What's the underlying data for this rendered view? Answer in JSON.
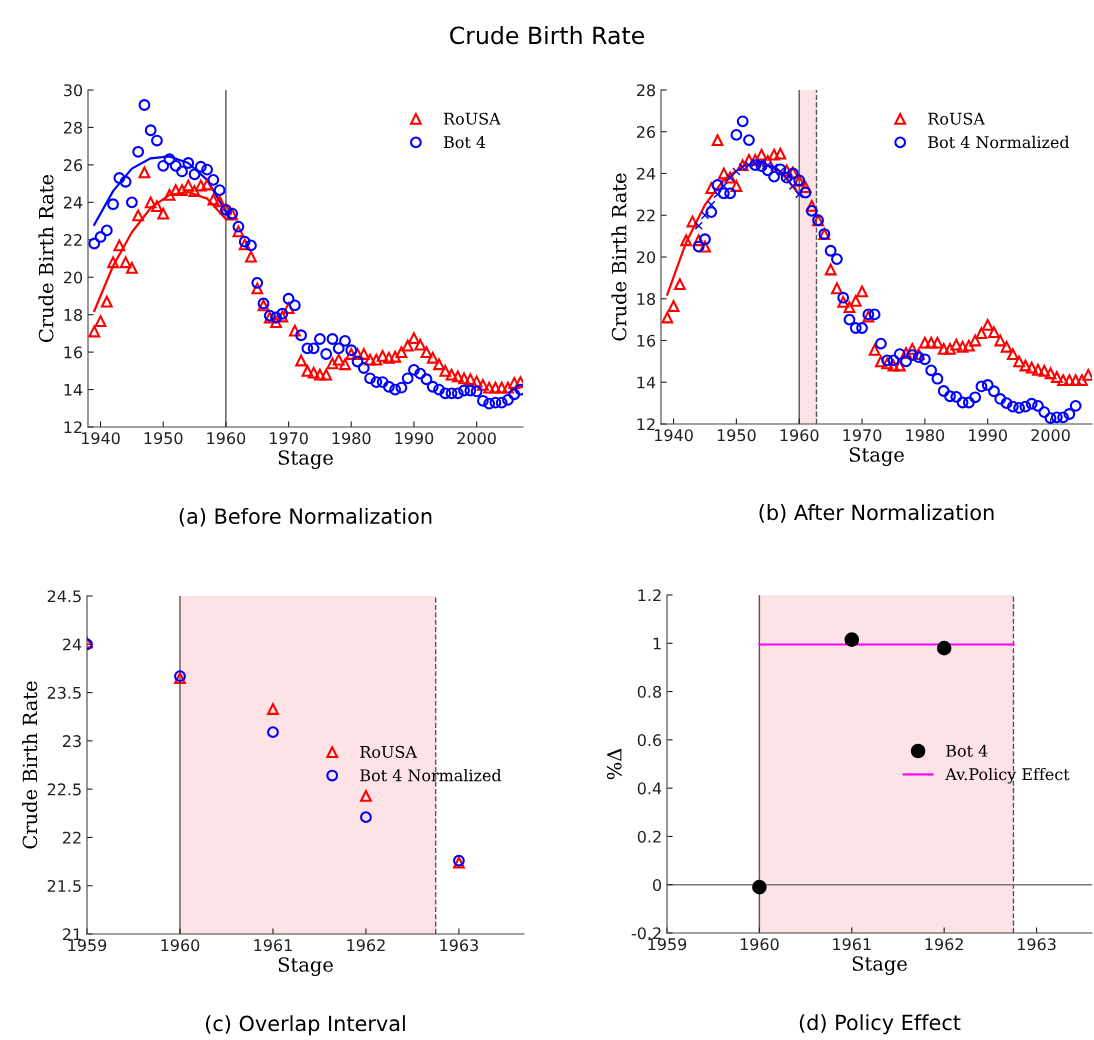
{
  "chart_data": [
    {
      "type": "scatter",
      "title": "Crude Birth Rate",
      "xlabel": "Stage",
      "ylabel": "Crude Birth Rate",
      "annotations": [
        "(a) Before Normalization"
      ],
      "xlim": [
        1938,
        2007.4
      ],
      "xticks": [
        1940,
        1950,
        1960,
        1970,
        1980,
        1990,
        2000
      ],
      "ylim": [
        12,
        30
      ],
      "yticks": [
        12,
        14,
        16,
        18,
        20,
        22,
        24,
        26,
        28,
        30
      ],
      "legend": "top right",
      "grid": false,
      "ref_lines": [
        {
          "axis": "x",
          "value": 1960,
          "color": "#555555",
          "line_style": "solid"
        }
      ],
      "series": [
        {
          "name": "RoUSA",
          "type": "scatter",
          "marker": "triangle",
          "color": "#ff0000",
          "x": [
            1939,
            1940,
            1941,
            1942,
            1943,
            1944,
            1945,
            1946,
            1947,
            1948,
            1949,
            1950,
            1951,
            1952,
            1953,
            1954,
            1955,
            1956,
            1957,
            1958,
            1959,
            1960,
            1961,
            1962,
            1963,
            1964,
            1965,
            1966,
            1967,
            1968,
            1969,
            1970,
            1971,
            1972,
            1973,
            1974,
            1975,
            1976,
            1977,
            1978,
            1979,
            1980,
            1981,
            1982,
            1983,
            1984,
            1985,
            1986,
            1987,
            1988,
            1989,
            1990,
            1991,
            1992,
            1993,
            1994,
            1995,
            1996,
            1997,
            1998,
            1999,
            2000,
            2001,
            2002,
            2003,
            2004,
            2005,
            2006,
            2007
          ],
          "values": [
            17.1,
            17.65,
            18.7,
            20.8,
            21.7,
            20.8,
            20.5,
            23.3,
            25.6,
            24.0,
            23.8,
            23.4,
            24.4,
            24.65,
            24.65,
            24.9,
            24.6,
            24.9,
            24.95,
            24.15,
            24.05,
            23.65,
            23.35,
            22.45,
            21.75,
            21.1,
            19.4,
            18.5,
            17.85,
            17.6,
            17.9,
            18.35,
            17.15,
            15.55,
            15.0,
            14.9,
            14.8,
            14.8,
            15.4,
            15.6,
            15.35,
            15.9,
            15.9,
            15.9,
            15.6,
            15.6,
            15.8,
            15.7,
            15.75,
            16.0,
            16.35,
            16.75,
            16.4,
            16.0,
            15.7,
            15.35,
            15.0,
            14.8,
            14.7,
            14.6,
            14.55,
            14.43,
            14.25,
            14.1,
            14.1,
            14.1,
            14.1,
            14.35,
            14.4
          ]
        },
        {
          "name": "Bot 4",
          "type": "scatter",
          "marker": "circle",
          "color": "#0000ff",
          "x": [
            1939,
            1940,
            1941,
            1942,
            1943,
            1944,
            1945,
            1946,
            1947,
            1948,
            1949,
            1950,
            1951,
            1952,
            1953,
            1954,
            1955,
            1956,
            1957,
            1958,
            1959,
            1960,
            1961,
            1962,
            1963,
            1964,
            1965,
            1966,
            1967,
            1968,
            1969,
            1970,
            1971,
            1972,
            1973,
            1974,
            1975,
            1976,
            1977,
            1978,
            1979,
            1980,
            1981,
            1982,
            1983,
            1984,
            1985,
            1986,
            1987,
            1988,
            1989,
            1990,
            1991,
            1992,
            1993,
            1994,
            1995,
            1996,
            1997,
            1998,
            1999,
            2000,
            2001,
            2002,
            2003,
            2004,
            2005,
            2006,
            2007
          ],
          "values": [
            21.8,
            22.15,
            22.5,
            23.9,
            25.3,
            25.1,
            24.0,
            26.7,
            29.2,
            27.85,
            27.3,
            25.95,
            26.3,
            25.95,
            25.65,
            26.1,
            25.5,
            25.9,
            25.75,
            25.2,
            24.65,
            23.6,
            23.4,
            22.7,
            21.9,
            21.7,
            19.7,
            18.6,
            17.95,
            17.85,
            18.05,
            18.85,
            18.5,
            16.9,
            16.2,
            16.2,
            16.7,
            15.9,
            16.7,
            16.2,
            16.6,
            16.1,
            15.5,
            15.15,
            14.6,
            14.4,
            14.4,
            14.15,
            14.0,
            14.1,
            14.6,
            15.05,
            14.85,
            14.55,
            14.15,
            14.0,
            13.8,
            13.8,
            13.8,
            13.95,
            13.95,
            13.9,
            13.4,
            13.25,
            13.3,
            13.3,
            13.45,
            13.75,
            14.0
          ]
        },
        {
          "type": "line",
          "color": "#ff0000",
          "x": [
            1939,
            1942,
            1945,
            1948,
            1951,
            1954,
            1957,
            1960
          ],
          "values": [
            18.2,
            20.6,
            22.4,
            23.7,
            24.4,
            24.55,
            24.2,
            23.1
          ]
        },
        {
          "type": "line",
          "color": "#0000ff",
          "x": [
            1939,
            1942,
            1945,
            1948,
            1951,
            1954,
            1957,
            1960
          ],
          "values": [
            22.8,
            24.6,
            25.8,
            26.35,
            26.45,
            26.1,
            25.2,
            23.5
          ]
        }
      ]
    },
    {
      "type": "scatter",
      "xlabel": "Stage",
      "ylabel": "Crude Birth Rate",
      "annotations": [
        "(b) After Normalization"
      ],
      "xlim": [
        1938,
        2006.6
      ],
      "xticks": [
        1940,
        1950,
        1960,
        1970,
        1980,
        1990,
        2000
      ],
      "ylim": [
        12,
        28
      ],
      "yticks": [
        12,
        14,
        16,
        18,
        20,
        22,
        24,
        26,
        28
      ],
      "legend": "top right",
      "grid": false,
      "bands": [
        {
          "axis": "x",
          "from": 1960,
          "to": 1962.75,
          "color": "#fde3e5"
        }
      ],
      "ref_lines": [
        {
          "axis": "x",
          "value": 1960,
          "color": "#555555",
          "line_style": "solid"
        },
        {
          "axis": "x",
          "value": 1962.75,
          "color": "#555555",
          "line_style": "dashed"
        }
      ],
      "series": [
        {
          "name": "RoUSA",
          "type": "scatter",
          "marker": "triangle",
          "color": "#ff0000",
          "x": [
            1939,
            1940,
            1941,
            1942,
            1943,
            1944,
            1945,
            1946,
            1947,
            1948,
            1949,
            1950,
            1951,
            1952,
            1953,
            1954,
            1955,
            1956,
            1957,
            1958,
            1959,
            1960,
            1961,
            1962,
            1963,
            1964,
            1965,
            1966,
            1967,
            1968,
            1969,
            1970,
            1971,
            1972,
            1973,
            1974,
            1975,
            1976,
            1977,
            1978,
            1979,
            1980,
            1981,
            1982,
            1983,
            1984,
            1985,
            1986,
            1987,
            1988,
            1989,
            1990,
            1991,
            1992,
            1993,
            1994,
            1995,
            1996,
            1997,
            1998,
            1999,
            2000,
            2001,
            2002,
            2003,
            2004,
            2005,
            2006
          ],
          "values": [
            17.1,
            17.65,
            18.7,
            20.8,
            21.7,
            20.8,
            20.5,
            23.3,
            25.6,
            24.0,
            23.8,
            23.4,
            24.4,
            24.65,
            24.65,
            24.9,
            24.6,
            24.9,
            24.95,
            24.15,
            24.05,
            23.65,
            23.35,
            22.45,
            21.75,
            21.1,
            19.4,
            18.5,
            17.85,
            17.6,
            17.9,
            18.35,
            17.15,
            15.55,
            15.0,
            14.9,
            14.8,
            14.8,
            15.4,
            15.6,
            15.35,
            15.9,
            15.9,
            15.9,
            15.6,
            15.6,
            15.8,
            15.7,
            15.75,
            16.0,
            16.35,
            16.75,
            16.4,
            16.0,
            15.7,
            15.35,
            15.0,
            14.8,
            14.7,
            14.6,
            14.55,
            14.43,
            14.25,
            14.1,
            14.1,
            14.1,
            14.1,
            14.35
          ]
        },
        {
          "name": "Bot 4 Normalized",
          "type": "scatter",
          "marker": "circle",
          "color": "#0000ff",
          "x": [
            1944,
            1945,
            1946,
            1947,
            1948,
            1949,
            1950,
            1951,
            1952,
            1953,
            1954,
            1955,
            1956,
            1957,
            1958,
            1959,
            1960,
            1961,
            1962,
            1963,
            1964,
            1965,
            1966,
            1967,
            1968,
            1969,
            1970,
            1971,
            1972,
            1973,
            1974,
            1975,
            1976,
            1977,
            1978,
            1979,
            1980,
            1981,
            1982,
            1983,
            1984,
            1985,
            1986,
            1987,
            1988,
            1989,
            1990,
            1991,
            1992,
            1993,
            1994,
            1995,
            1996,
            1997,
            1998,
            1999,
            2000,
            2001,
            2002,
            2003,
            2004
          ],
          "values": [
            20.5,
            20.85,
            22.15,
            23.45,
            23.05,
            23.05,
            25.85,
            26.5,
            25.6,
            24.4,
            24.35,
            24.15,
            23.85,
            24.2,
            23.8,
            24.0,
            23.67,
            23.09,
            22.21,
            21.76,
            21.1,
            20.3,
            19.9,
            18.05,
            17.0,
            16.6,
            16.6,
            17.25,
            17.25,
            15.85,
            15.05,
            15.05,
            15.35,
            15.0,
            15.3,
            15.2,
            15.1,
            14.57,
            14.17,
            13.58,
            13.33,
            13.3,
            13.03,
            13.03,
            13.28,
            13.8,
            13.87,
            13.57,
            13.2,
            13.0,
            12.83,
            12.77,
            12.83,
            12.97,
            12.87,
            12.57,
            12.28,
            12.32,
            12.32,
            12.48,
            12.87
          ]
        },
        {
          "type": "line",
          "color": "#ff0000",
          "x": [
            1939,
            1942,
            1945,
            1948,
            1951,
            1954,
            1957,
            1960
          ],
          "values": [
            18.2,
            20.7,
            22.5,
            23.7,
            24.35,
            24.5,
            24.1,
            23.0
          ]
        },
        {
          "type": "scatter",
          "marker": "cross",
          "color": "#0000ff",
          "x": [
            1944,
            1945,
            1946,
            1947,
            1948,
            1949,
            1950,
            1951,
            1952,
            1953,
            1954,
            1955,
            1956,
            1957,
            1958,
            1959,
            1960
          ],
          "values": [
            21.5,
            22.0,
            22.5,
            23.0,
            23.4,
            23.8,
            24.1,
            24.3,
            24.4,
            24.5,
            24.5,
            24.4,
            24.3,
            24.1,
            23.8,
            23.4,
            23.0
          ]
        }
      ]
    },
    {
      "type": "scatter",
      "xlabel": "Stage",
      "ylabel": "Crude Birth Rate",
      "annotations": [
        "(c) Overlap Interval"
      ],
      "xlim": [
        1959,
        1963.7
      ],
      "xticks": [
        1959,
        1960,
        1961,
        1962,
        1963
      ],
      "ylim": [
        21,
        24.5
      ],
      "yticks": [
        21,
        21.5,
        22,
        22.5,
        23,
        23.5,
        24,
        24.5
      ],
      "legend": "right",
      "grid": false,
      "bands": [
        {
          "axis": "x",
          "from": 1960,
          "to": 1962.75,
          "color": "#fde3e5"
        }
      ],
      "ref_lines": [
        {
          "axis": "x",
          "value": 1960,
          "color": "#555555",
          "line_style": "solid"
        },
        {
          "axis": "x",
          "value": 1962.75,
          "color": "#555555",
          "line_style": "dashed"
        }
      ],
      "series": [
        {
          "name": "RoUSA",
          "type": "scatter",
          "marker": "triangle",
          "color": "#ff0000",
          "x": [
            1959,
            1960,
            1961,
            1962,
            1963
          ],
          "values": [
            24.02,
            23.65,
            23.33,
            22.43,
            21.74
          ]
        },
        {
          "name": "Bot 4 Normalized",
          "type": "scatter",
          "marker": "circle",
          "color": "#0000ff",
          "x": [
            1959,
            1960,
            1961,
            1962,
            1963
          ],
          "values": [
            24.0,
            23.67,
            23.09,
            22.21,
            21.76
          ]
        }
      ]
    },
    {
      "type": "scatter",
      "xlabel": "Stage",
      "ylabel": "%Δ",
      "annotations": [
        "(d) Policy Effect"
      ],
      "xlim": [
        1959,
        1963.6
      ],
      "xticks": [
        1959,
        1960,
        1961,
        1962,
        1963
      ],
      "ylim": [
        -0.2,
        1.2
      ],
      "yticks": [
        -0.2,
        0,
        0.2,
        0.4,
        0.6,
        0.8,
        1,
        1.2
      ],
      "legend": "right",
      "grid": false,
      "bands": [
        {
          "axis": "x",
          "from": 1960,
          "to": 1962.75,
          "color": "#fde3e5"
        }
      ],
      "ref_lines": [
        {
          "axis": "x",
          "value": 1960,
          "color": "#555555",
          "line_style": "solid"
        },
        {
          "axis": "x",
          "value": 1962.75,
          "color": "#555555",
          "line_style": "dashed"
        },
        {
          "axis": "y",
          "value": 0,
          "color": "#777777",
          "line_style": "solid"
        }
      ],
      "series": [
        {
          "name": "Bot 4",
          "type": "scatter",
          "marker": "circle",
          "color": "#000000",
          "x": [
            1960,
            1961,
            1962
          ],
          "values": [
            -0.01,
            1.015,
            0.98
          ]
        },
        {
          "name": "Av.Policy Effect",
          "type": "line",
          "color": "#ff00ff",
          "x": [
            1960,
            1962.75
          ],
          "values": [
            0.995,
            0.995
          ]
        }
      ]
    }
  ]
}
